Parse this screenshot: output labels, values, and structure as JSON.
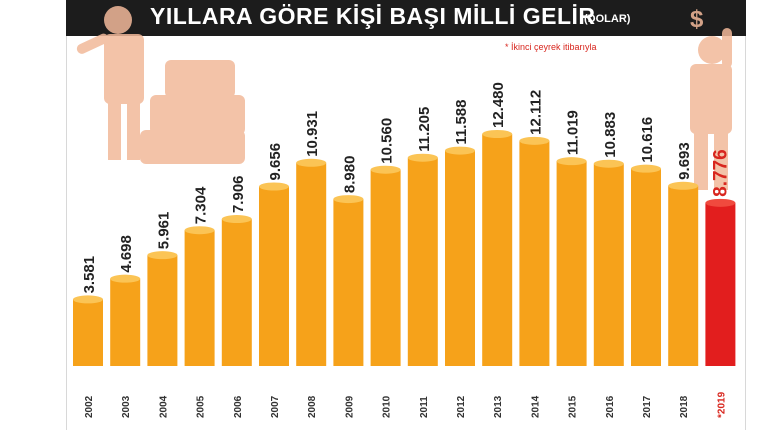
{
  "header": {
    "title": "YILLARA GÖRE KİŞİ BAŞI MİLLİ GELİR",
    "unit": "(DOLAR)",
    "footnote": "* İkinci çeyrek itibarıyla"
  },
  "colors": {
    "bar": "#f6a21a",
    "bar_top": "#fbc455",
    "highlight_bar": "#e21e1e",
    "highlight_top": "#f04a3e",
    "illustration": "#f2b99a",
    "title_bg": "#1c1c1c"
  },
  "illustrations": [
    "man-pointing-icon",
    "money-bags-icon",
    "dollar-sign-icon",
    "man-thinking-icon"
  ],
  "chart_data": {
    "type": "bar",
    "title": "YILLARA GÖRE KİŞİ BAŞI MİLLİ GELİR",
    "categories": [
      "2002",
      "2003",
      "2004",
      "2005",
      "2006",
      "2007",
      "2008",
      "2009",
      "2010",
      "2011",
      "2012",
      "2013",
      "2014",
      "2015",
      "2016",
      "2017",
      "2018",
      "*2019"
    ],
    "values": [
      3581,
      4698,
      5961,
      7304,
      7906,
      9656,
      10931,
      8980,
      10560,
      11205,
      11588,
      12480,
      12112,
      11019,
      10883,
      10616,
      9693,
      8776
    ],
    "value_labels": [
      "3.581",
      "4.698",
      "5.961",
      "7.304",
      "7.906",
      "9.656",
      "10.931",
      "8.980",
      "10.560",
      "11.205",
      "11.588",
      "12.480",
      "12.112",
      "11.019",
      "10.883",
      "10.616",
      "9.693",
      "8.776"
    ],
    "highlight_index": 17,
    "ylim": [
      0,
      12480
    ]
  }
}
